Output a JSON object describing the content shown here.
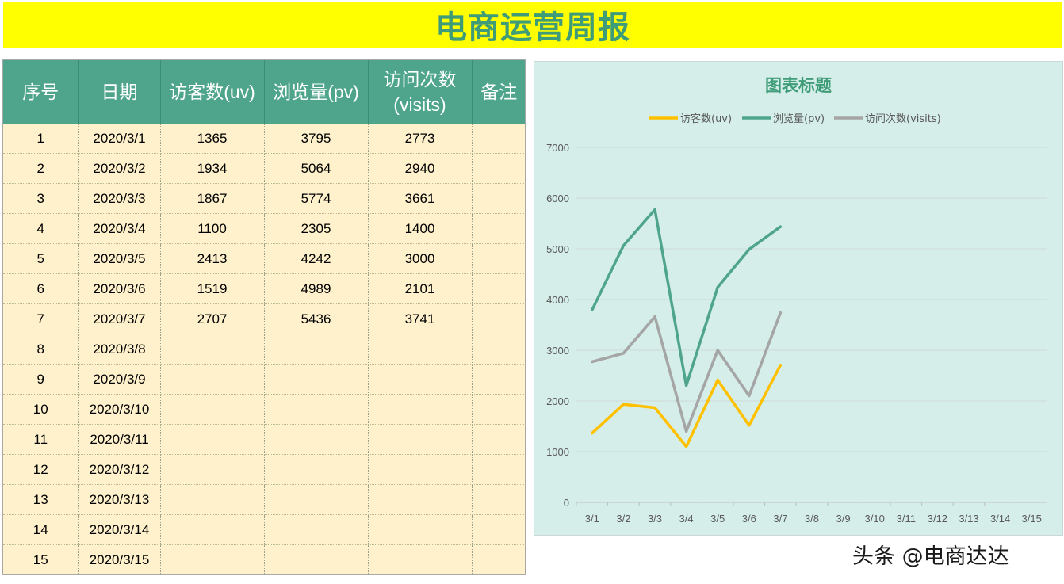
{
  "page_title": "电商运营周报",
  "table": {
    "headers": [
      "序号",
      "日期",
      "访客数(uv)",
      "浏览量(pv)",
      "访问次数\n(visits)",
      "备注"
    ],
    "rows": [
      [
        "1",
        "2020/3/1",
        "1365",
        "3795",
        "2773",
        ""
      ],
      [
        "2",
        "2020/3/2",
        "1934",
        "5064",
        "2940",
        ""
      ],
      [
        "3",
        "2020/3/3",
        "1867",
        "5774",
        "3661",
        ""
      ],
      [
        "4",
        "2020/3/4",
        "1100",
        "2305",
        "1400",
        ""
      ],
      [
        "5",
        "2020/3/5",
        "2413",
        "4242",
        "3000",
        ""
      ],
      [
        "6",
        "2020/3/6",
        "1519",
        "4989",
        "2101",
        ""
      ],
      [
        "7",
        "2020/3/7",
        "2707",
        "5436",
        "3741",
        ""
      ],
      [
        "8",
        "2020/3/8",
        "",
        "",
        "",
        ""
      ],
      [
        "9",
        "2020/3/9",
        "",
        "",
        "",
        ""
      ],
      [
        "10",
        "2020/3/10",
        "",
        "",
        "",
        ""
      ],
      [
        "11",
        "2020/3/11",
        "",
        "",
        "",
        ""
      ],
      [
        "12",
        "2020/3/12",
        "",
        "",
        "",
        ""
      ],
      [
        "13",
        "2020/3/13",
        "",
        "",
        "",
        ""
      ],
      [
        "14",
        "2020/3/14",
        "",
        "",
        "",
        ""
      ],
      [
        "15",
        "2020/3/15",
        "",
        "",
        "",
        ""
      ]
    ]
  },
  "chart_data": {
    "type": "line",
    "title": "图表标题",
    "categories": [
      "3/1",
      "3/2",
      "3/3",
      "3/4",
      "3/5",
      "3/6",
      "3/7",
      "3/8",
      "3/9",
      "3/10",
      "3/11",
      "3/12",
      "3/13",
      "3/14",
      "3/15"
    ],
    "series": [
      {
        "name": "访客数(uv)",
        "color": "#ffc000",
        "values": [
          1365,
          1934,
          1867,
          1100,
          2413,
          1519,
          2707,
          null,
          null,
          null,
          null,
          null,
          null,
          null,
          null
        ]
      },
      {
        "name": "浏览量(pv)",
        "color": "#4ea58b",
        "values": [
          3795,
          5064,
          5774,
          2305,
          4242,
          4989,
          5436,
          null,
          null,
          null,
          null,
          null,
          null,
          null,
          null
        ]
      },
      {
        "name": "访问次数(visits)",
        "color": "#a5a5a5",
        "values": [
          2773,
          2940,
          3661,
          1400,
          3000,
          2101,
          3741,
          null,
          null,
          null,
          null,
          null,
          null,
          null,
          null
        ]
      }
    ],
    "ylim": [
      0,
      7000
    ],
    "yticks": [
      0,
      1000,
      2000,
      3000,
      4000,
      5000,
      6000,
      7000
    ],
    "legend_position": "top",
    "grid": true
  },
  "watermark": "头条 @电商达达"
}
